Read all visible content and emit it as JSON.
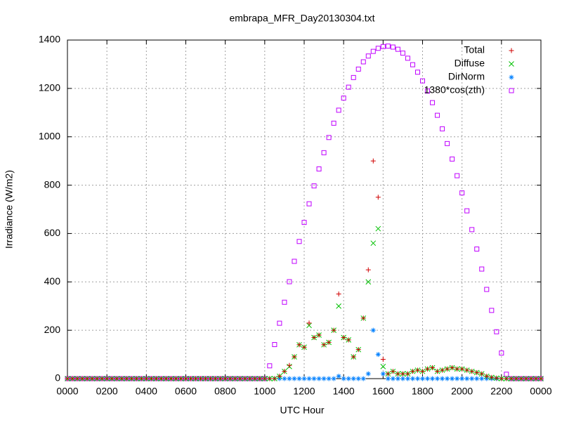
{
  "chart_data": {
    "type": "scatter",
    "title": "embrapa_MFR_Day20130304.txt",
    "x_label": "UTC Hour",
    "y_label": "Irradiance (W/m2)",
    "xlim": [
      0,
      24
    ],
    "ylim": [
      0,
      1400
    ],
    "xticks": [
      {
        "value": 0,
        "label": "0000"
      },
      {
        "value": 2,
        "label": "0200"
      },
      {
        "value": 4,
        "label": "0400"
      },
      {
        "value": 6,
        "label": "0600"
      },
      {
        "value": 8,
        "label": "0800"
      },
      {
        "value": 10,
        "label": "1000"
      },
      {
        "value": 12,
        "label": "1200"
      },
      {
        "value": 14,
        "label": "1400"
      },
      {
        "value": 16,
        "label": "1600"
      },
      {
        "value": 18,
        "label": "1800"
      },
      {
        "value": 20,
        "label": "2000"
      },
      {
        "value": 22,
        "label": "2200"
      },
      {
        "value": 24,
        "label": "0000"
      }
    ],
    "yticks": [
      0,
      200,
      400,
      600,
      800,
      1000,
      1200,
      1400
    ],
    "grid": true,
    "legend": "top-right",
    "x": [
      0,
      0.25,
      0.5,
      0.75,
      1,
      1.25,
      1.5,
      1.75,
      2,
      2.25,
      2.5,
      2.75,
      3,
      3.25,
      3.5,
      3.75,
      4,
      4.25,
      4.5,
      4.75,
      5,
      5.25,
      5.5,
      5.75,
      6,
      6.25,
      6.5,
      6.75,
      7,
      7.25,
      7.5,
      7.75,
      8,
      8.25,
      8.5,
      8.75,
      9,
      9.25,
      9.5,
      9.75,
      10,
      10.25,
      10.5,
      10.75,
      11,
      11.25,
      11.5,
      11.75,
      12,
      12.25,
      12.5,
      12.75,
      13,
      13.25,
      13.5,
      13.75,
      14,
      14.25,
      14.5,
      14.75,
      15,
      15.25,
      15.5,
      15.75,
      16,
      16.25,
      16.5,
      16.75,
      17,
      17.25,
      17.5,
      17.75,
      18,
      18.25,
      18.5,
      18.75,
      19,
      19.25,
      19.5,
      19.75,
      20,
      20.25,
      20.5,
      20.75,
      21,
      21.25,
      21.5,
      21.75,
      22,
      22.25,
      22.5,
      22.75,
      23,
      23.25,
      23.5,
      23.75,
      24
    ],
    "series": [
      {
        "name": "Total",
        "color": "#d00000",
        "marker": "plus",
        "values": [
          0,
          0,
          0,
          0,
          0,
          0,
          0,
          0,
          0,
          0,
          0,
          0,
          0,
          0,
          0,
          0,
          0,
          0,
          0,
          0,
          0,
          0,
          0,
          0,
          0,
          0,
          0,
          0,
          0,
          0,
          0,
          0,
          0,
          0,
          0,
          0,
          0,
          0,
          0,
          0,
          0,
          0,
          0,
          10,
          30,
          55,
          90,
          140,
          130,
          230,
          170,
          180,
          140,
          150,
          200,
          350,
          170,
          160,
          90,
          120,
          250,
          450,
          900,
          750,
          80,
          20,
          30,
          20,
          20,
          20,
          30,
          35,
          30,
          40,
          45,
          30,
          35,
          40,
          45,
          40,
          40,
          35,
          30,
          25,
          20,
          10,
          5,
          2,
          0,
          0,
          0,
          0,
          0,
          0,
          0,
          0,
          0
        ]
      },
      {
        "name": "Diffuse",
        "color": "#00c000",
        "marker": "cross",
        "values": [
          0,
          0,
          0,
          0,
          0,
          0,
          0,
          0,
          0,
          0,
          0,
          0,
          0,
          0,
          0,
          0,
          0,
          0,
          0,
          0,
          0,
          0,
          0,
          0,
          0,
          0,
          0,
          0,
          0,
          0,
          0,
          0,
          0,
          0,
          0,
          0,
          0,
          0,
          0,
          0,
          0,
          0,
          0,
          10,
          30,
          50,
          90,
          140,
          130,
          220,
          170,
          180,
          140,
          150,
          200,
          300,
          170,
          160,
          90,
          120,
          250,
          400,
          560,
          620,
          50,
          20,
          30,
          20,
          20,
          20,
          30,
          35,
          30,
          40,
          45,
          30,
          35,
          40,
          45,
          40,
          40,
          35,
          30,
          25,
          20,
          10,
          5,
          2,
          0,
          0,
          0,
          0,
          0,
          0,
          0,
          0,
          0
        ]
      },
      {
        "name": "DirNorm",
        "color": "#0080ff",
        "marker": "star",
        "values": [
          0,
          0,
          0,
          0,
          0,
          0,
          0,
          0,
          0,
          0,
          0,
          0,
          0,
          0,
          0,
          0,
          0,
          0,
          0,
          0,
          0,
          0,
          0,
          0,
          0,
          0,
          0,
          0,
          0,
          0,
          0,
          0,
          0,
          0,
          0,
          0,
          0,
          0,
          0,
          0,
          0,
          0,
          0,
          0,
          0,
          0,
          0,
          0,
          0,
          0,
          0,
          0,
          0,
          0,
          0,
          10,
          0,
          0,
          0,
          0,
          0,
          20,
          200,
          100,
          20,
          0,
          0,
          0,
          0,
          0,
          0,
          0,
          0,
          0,
          0,
          0,
          0,
          0,
          0,
          0,
          0,
          0,
          0,
          0,
          0,
          0,
          0,
          0,
          0,
          0,
          0,
          0,
          0,
          0,
          0,
          0,
          0
        ]
      },
      {
        "name": "1380*cos(zth)",
        "color": "#c000ff",
        "marker": "square",
        "values": [
          0,
          0,
          0,
          0,
          0,
          0,
          0,
          0,
          0,
          0,
          0,
          0,
          0,
          0,
          0,
          0,
          0,
          0,
          0,
          0,
          0,
          0,
          0,
          0,
          0,
          0,
          0,
          0,
          0,
          0,
          0,
          0,
          0,
          0,
          0,
          0,
          0,
          0,
          0,
          0,
          0,
          53,
          141,
          229,
          316,
          401,
          485,
          567,
          646,
          723,
          797,
          867,
          934,
          997,
          1056,
          1110,
          1160,
          1205,
          1245,
          1280,
          1310,
          1334,
          1353,
          1366,
          1373,
          1375,
          1371,
          1362,
          1346,
          1325,
          1298,
          1267,
          1231,
          1189,
          1141,
          1089,
          1033,
          972,
          908,
          839,
          768,
          694,
          616,
          536,
          453,
          369,
          282,
          194,
          106,
          18,
          0,
          0,
          0,
          0,
          0,
          0,
          0
        ]
      }
    ]
  }
}
